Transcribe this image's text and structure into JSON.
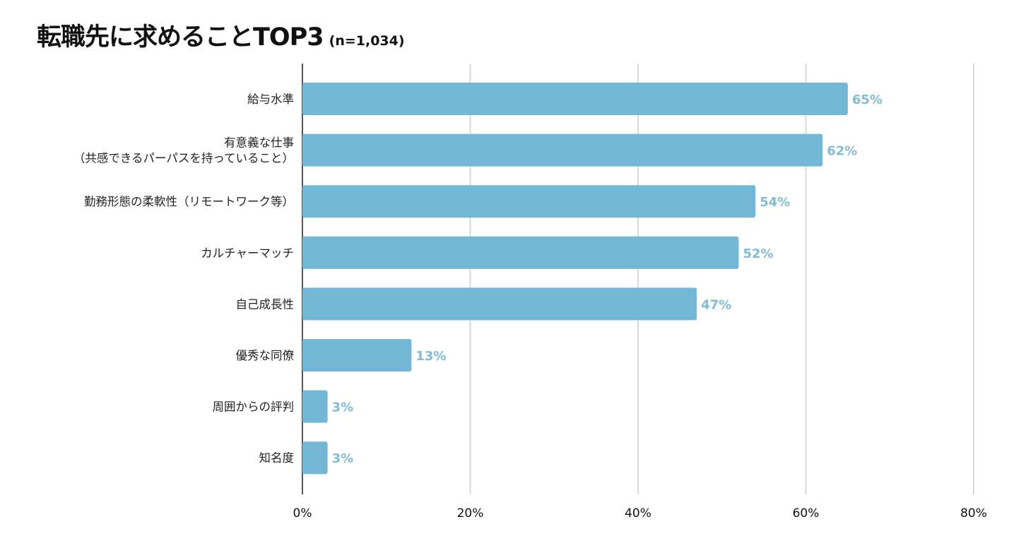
{
  "title": "転職先に求めることTOP3",
  "subtitle": "(n=1,034)",
  "colors": {
    "bar": "#72b7d5",
    "value_label": "#7fbcd8",
    "grid": "#d9d9d9",
    "axis": "#555555"
  },
  "chart_data": {
    "type": "bar",
    "orientation": "horizontal",
    "title": "転職先に求めることTOP3",
    "subtitle": "(n=1,034)",
    "categories": [
      [
        "給与水準"
      ],
      [
        "有意義な仕事",
        "（共感できるパーパスを持っていること）"
      ],
      [
        "勤務形態の柔軟性（リモートワーク等）"
      ],
      [
        "カルチャーマッチ"
      ],
      [
        "自己成長性"
      ],
      [
        "優秀な同僚"
      ],
      [
        "周囲からの評判"
      ],
      [
        "知名度"
      ]
    ],
    "values": [
      65,
      62,
      54,
      52,
      47,
      13,
      3,
      3
    ],
    "value_labels": [
      "65%",
      "62%",
      "54%",
      "52%",
      "47%",
      "13%",
      "3%",
      "3%"
    ],
    "xlim": [
      0,
      80
    ],
    "xticks": [
      0,
      20,
      40,
      60,
      80
    ],
    "xtick_labels": [
      "0%",
      "20%",
      "40%",
      "60%",
      "80%"
    ],
    "grid": true,
    "legend": "none"
  }
}
